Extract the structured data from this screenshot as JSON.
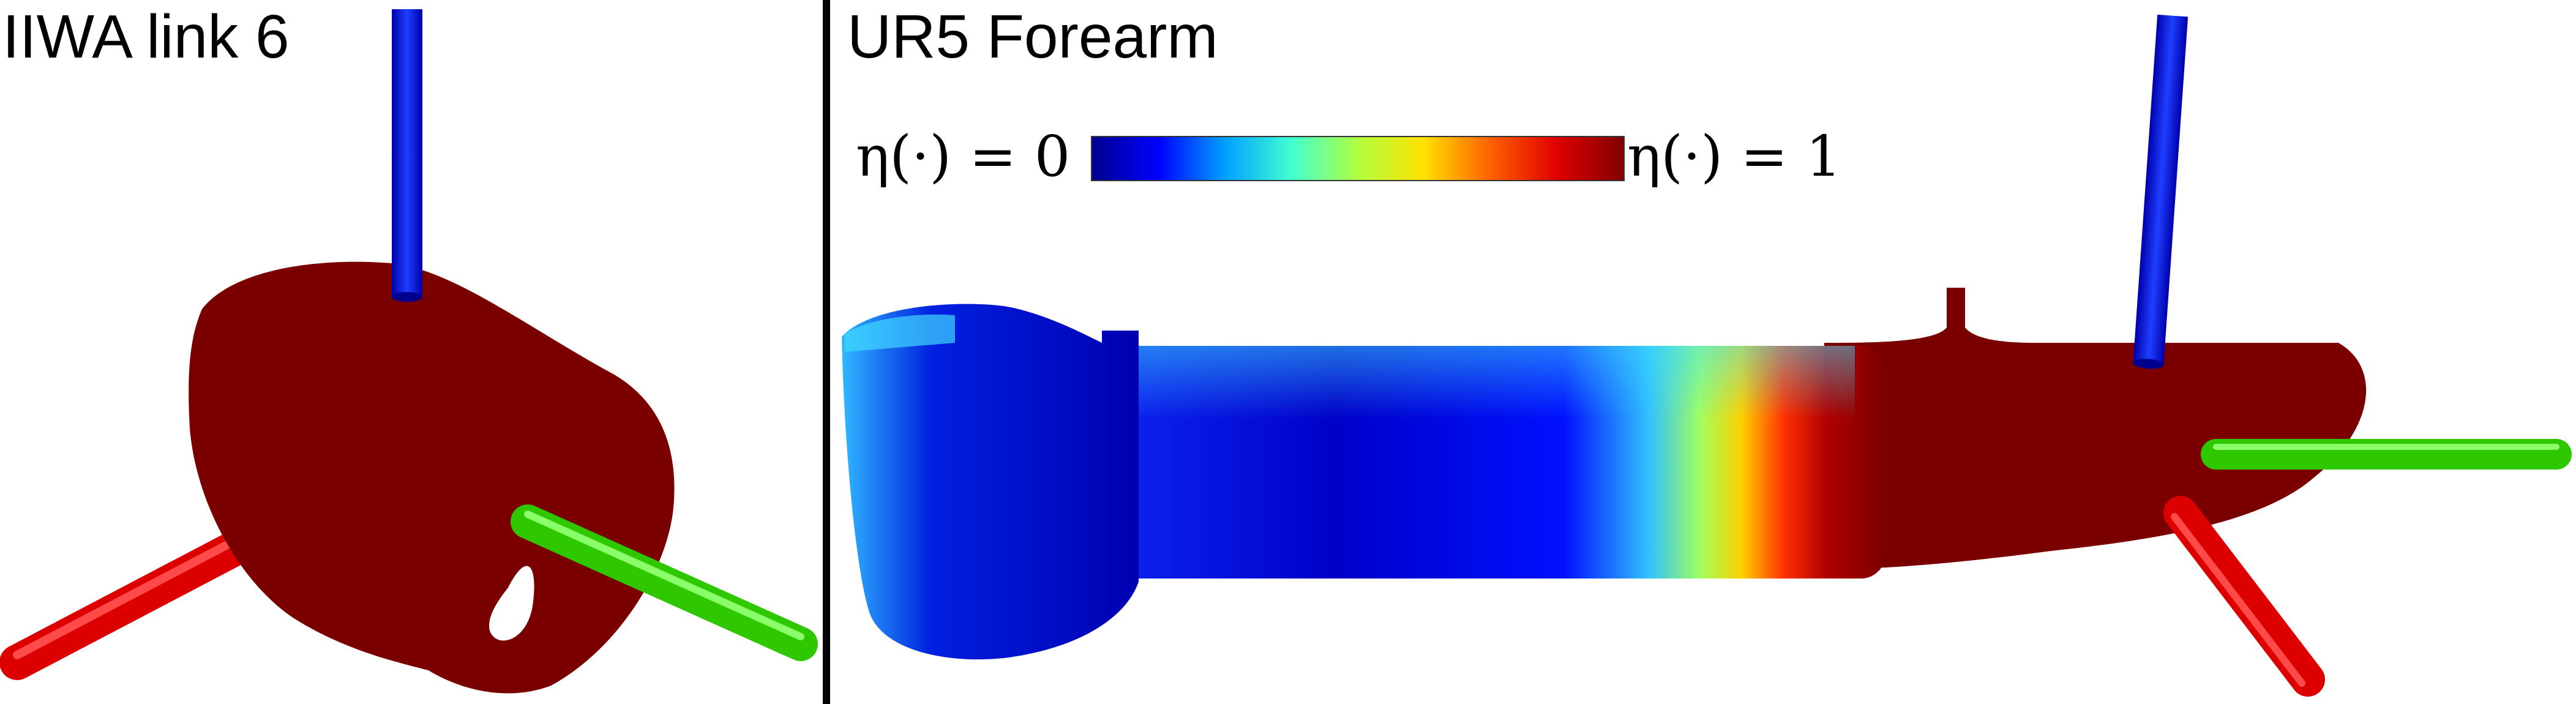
{
  "panels": {
    "left": {
      "title": "IIWA link 6"
    },
    "right": {
      "title": "UR5 Forearm"
    }
  },
  "colorbar": {
    "min_label": "η(·) = 0",
    "max_label": "η(·) = 1",
    "colors": [
      "#00008f",
      "#0000ff",
      "#00a0ff",
      "#40ffd0",
      "#b0ff40",
      "#ffe000",
      "#ff6000",
      "#e00000",
      "#800000"
    ]
  },
  "colors": {
    "mesh_dark_red": "#7a0000",
    "axis_x": "#ff0000",
    "axis_y": "#22cc00",
    "axis_z": "#0000dd"
  }
}
